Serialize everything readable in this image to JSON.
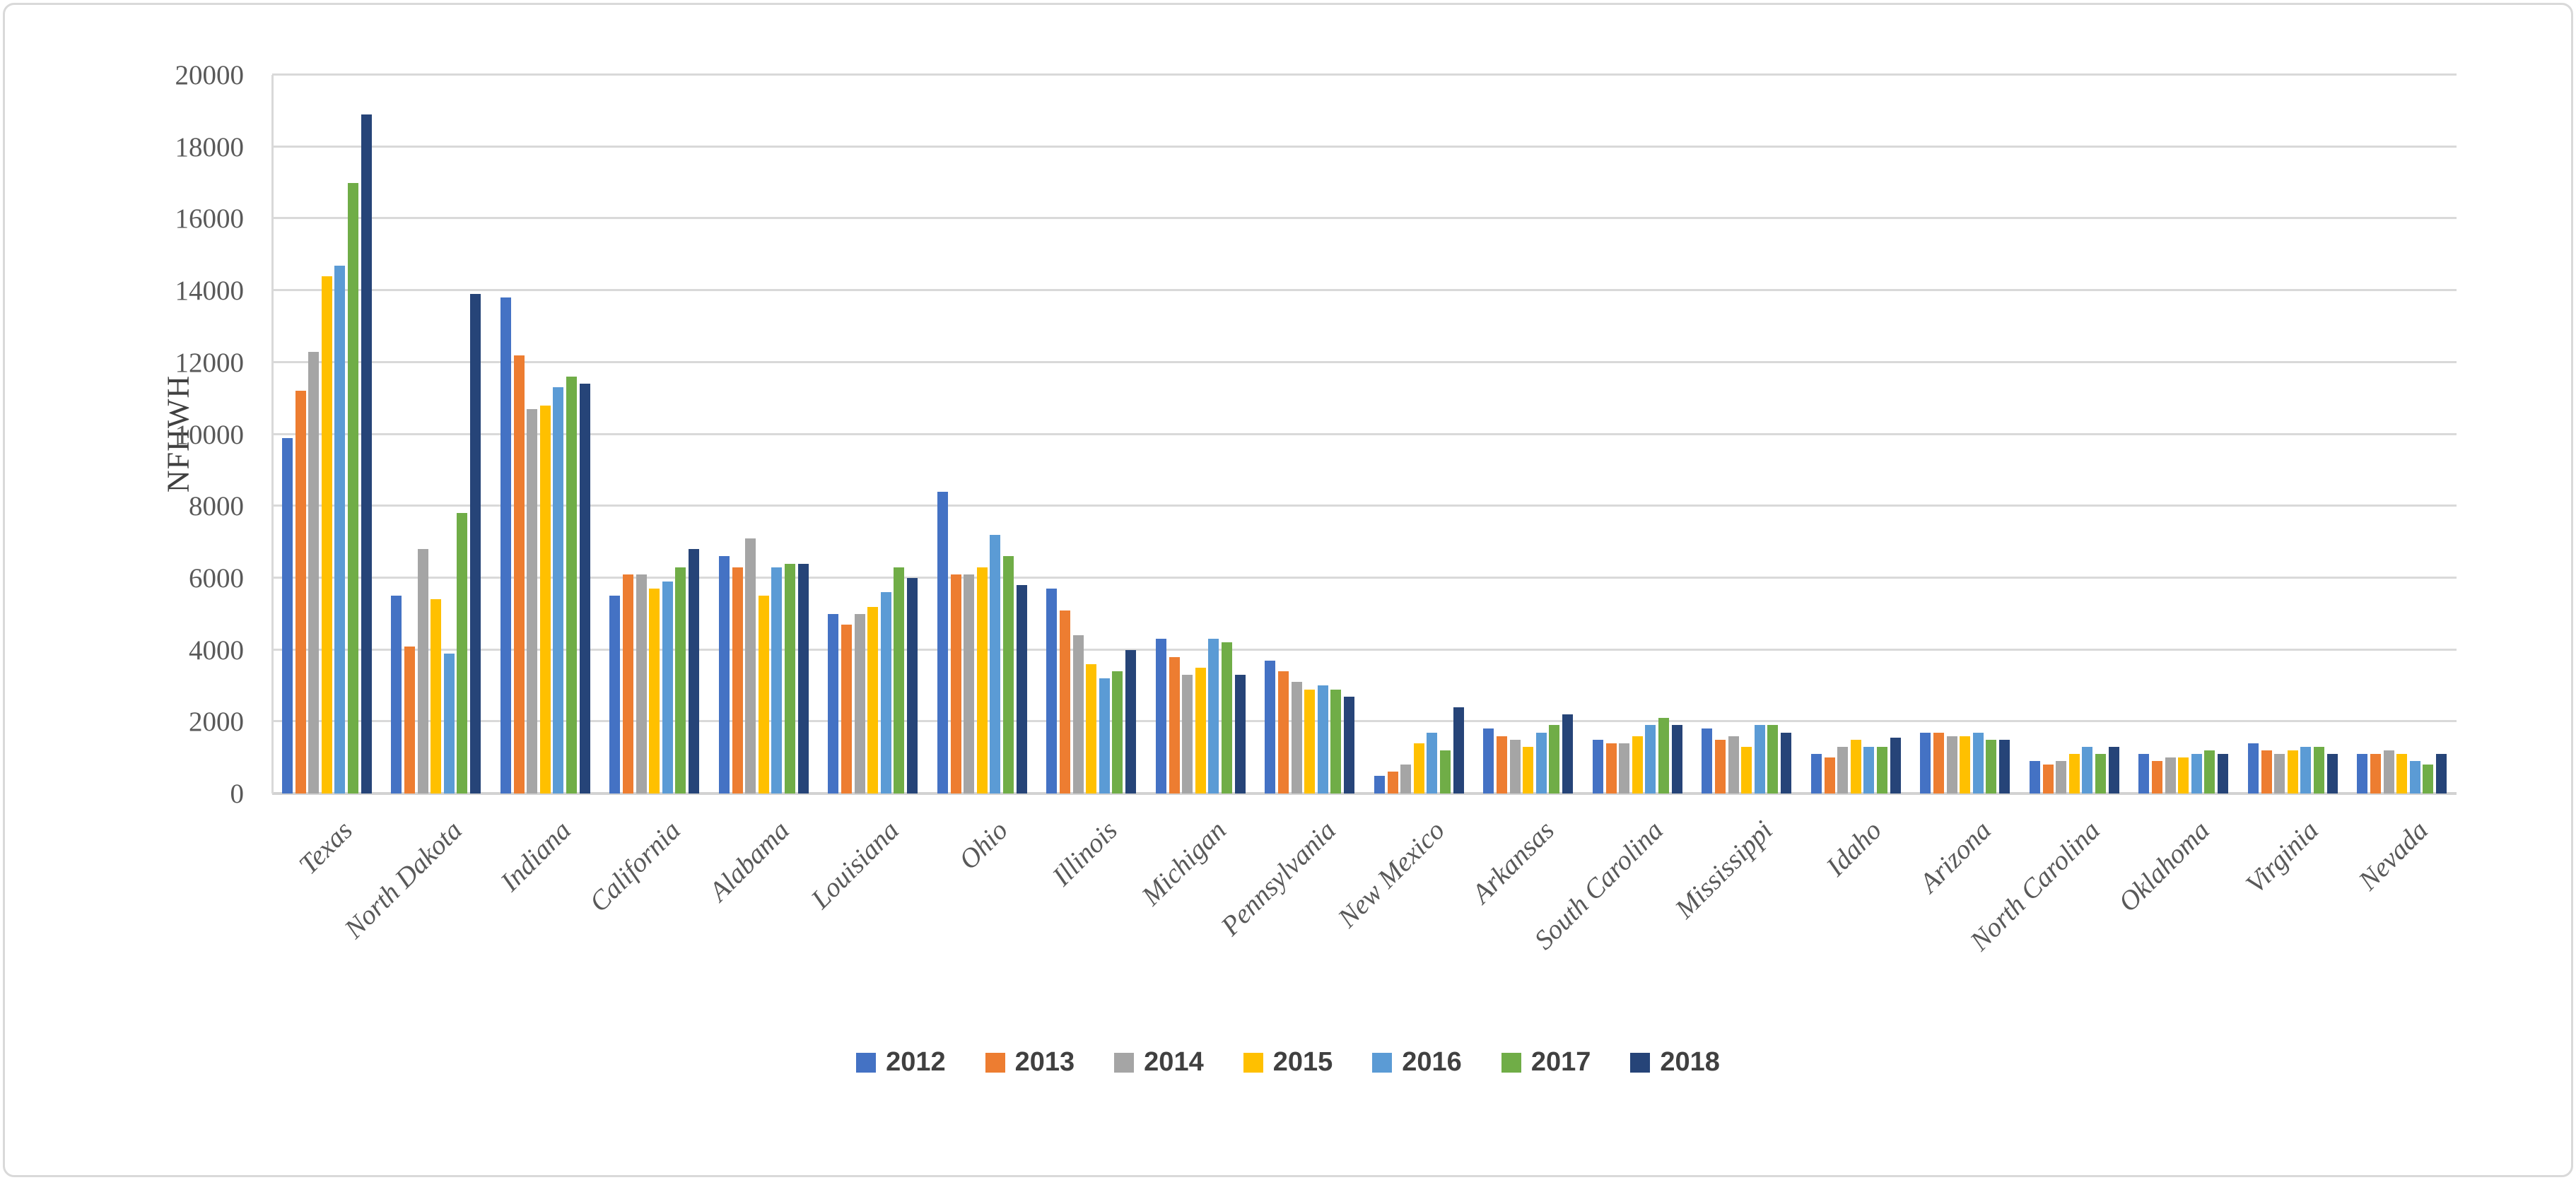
{
  "chart_data": {
    "type": "bar",
    "title": "",
    "xlabel": "",
    "ylabel": "NFHWH",
    "ylim": [
      0,
      20000
    ],
    "ytick_step": 2000,
    "ytick_labels": [
      "0",
      "2000",
      "4000",
      "6000",
      "8000",
      "10000",
      "12000",
      "14000",
      "16000",
      "18000",
      "20000"
    ],
    "grid": true,
    "legend_position": "bottom",
    "categories": [
      "Texas",
      "North Dakota",
      "Indiana",
      "California",
      "Alabama",
      "Louisiana",
      "Ohio",
      "Illinois",
      "Michigan",
      "Pennsylvania",
      "New Mexico",
      "Arkansas",
      "South Carolina",
      "Mississippi",
      "Idaho",
      "Arizona",
      "North Carolina",
      "Oklahoma",
      "Virginia",
      "Nevada"
    ],
    "series": [
      {
        "name": "2012",
        "color": "#4472C4",
        "values": [
          9900,
          5500,
          13800,
          5500,
          6600,
          5000,
          8400,
          5700,
          4300,
          3700,
          500,
          1800,
          1500,
          1800,
          1100,
          1700,
          900,
          1100,
          1400,
          1100
        ]
      },
      {
        "name": "2013",
        "color": "#ED7D31",
        "values": [
          11200,
          4100,
          12200,
          6100,
          6300,
          4700,
          6100,
          5100,
          3800,
          3400,
          600,
          1600,
          1400,
          1500,
          1000,
          1700,
          800,
          900,
          1200,
          1100
        ]
      },
      {
        "name": "2014",
        "color": "#A5A5A5",
        "values": [
          12300,
          6800,
          10700,
          6100,
          7100,
          5000,
          6100,
          4400,
          3300,
          3100,
          800,
          1500,
          1400,
          1600,
          1300,
          1600,
          900,
          1000,
          1100,
          1200
        ]
      },
      {
        "name": "2015",
        "color": "#FFC000",
        "values": [
          14400,
          5400,
          10800,
          5700,
          5500,
          5200,
          6300,
          3600,
          3500,
          2900,
          1400,
          1300,
          1600,
          1300,
          1500,
          1600,
          1100,
          1000,
          1200,
          1100
        ]
      },
      {
        "name": "2016",
        "color": "#5B9BD5",
        "values": [
          14700,
          3900,
          11300,
          5900,
          6300,
          5600,
          7200,
          3200,
          4300,
          3000,
          1700,
          1700,
          1900,
          1900,
          1300,
          1700,
          1300,
          1100,
          1300,
          900
        ]
      },
      {
        "name": "2017",
        "color": "#70AD47",
        "values": [
          17000,
          7800,
          11600,
          6300,
          6400,
          6300,
          6600,
          3400,
          4200,
          2900,
          1200,
          1900,
          2100,
          1900,
          1300,
          1500,
          1100,
          1200,
          1300,
          800
        ]
      },
      {
        "name": "2018",
        "color": "#264478",
        "values": [
          18900,
          13900,
          11400,
          6800,
          6400,
          6000,
          5800,
          4000,
          3300,
          2700,
          2400,
          2200,
          1900,
          1700,
          1550,
          1500,
          1300,
          1100,
          1100,
          1100
        ]
      }
    ]
  },
  "colors": {
    "background": "#FFFFFF",
    "frame_border": "#D9D9D9",
    "gridline": "#D9D9D9",
    "axis_line": "#D2D2D2",
    "tick_text": "#595959",
    "axis_title_text": "#404040",
    "legend_text": "#404040"
  }
}
